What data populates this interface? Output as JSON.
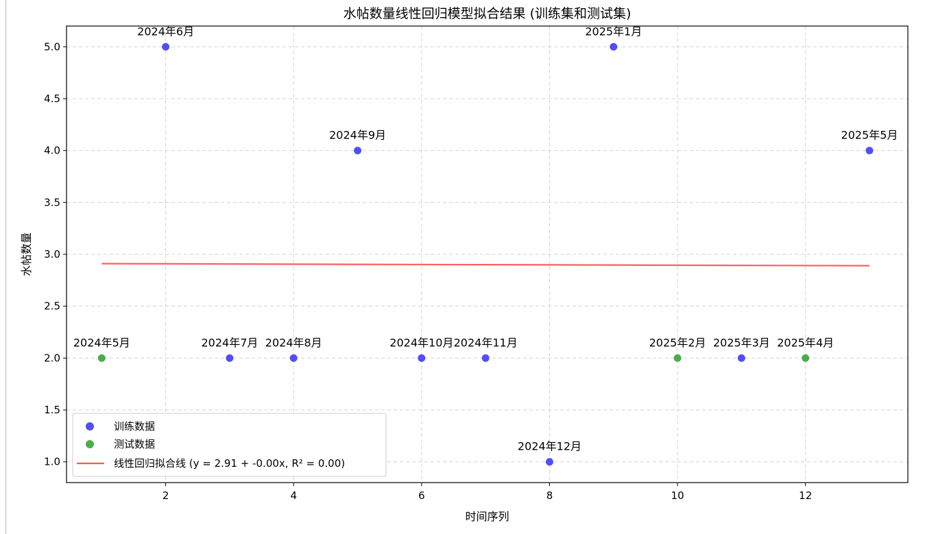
{
  "chart_data": {
    "type": "scatter",
    "title": "水帖数量线性回归模型拟合结果 (训练集和测试集)",
    "xlabel": "时间序列",
    "ylabel": "水帖数量",
    "xlim": [
      0.45,
      13.6
    ],
    "ylim": [
      0.8,
      5.2
    ],
    "xticks": [
      2,
      4,
      6,
      8,
      10,
      12
    ],
    "yticks": [
      1.0,
      1.5,
      2.0,
      2.5,
      3.0,
      3.5,
      4.0,
      4.5,
      5.0
    ],
    "xtick_labels": [
      "2",
      "4",
      "6",
      "8",
      "10",
      "12"
    ],
    "ytick_labels": [
      "1.0",
      "1.5",
      "2.0",
      "2.5",
      "3.0",
      "3.5",
      "4.0",
      "4.5",
      "5.0"
    ],
    "grid": true,
    "legend_position": "lower-left",
    "series": [
      {
        "name": "训练数据",
        "color": "#3333ee",
        "x": [
          2,
          3,
          4,
          5,
          6,
          7,
          8,
          9,
          11,
          13
        ],
        "y": [
          5,
          2,
          2,
          4,
          2,
          2,
          1,
          5,
          2,
          4
        ]
      },
      {
        "name": "测试数据",
        "color": "#2ca02c",
        "x": [
          1,
          10,
          12
        ],
        "y": [
          2,
          2,
          2
        ]
      }
    ],
    "fit_line": {
      "name": "线性回归拟合线 (y = 2.91 + -0.00x, R² = 0.00)",
      "color": "#ff5555",
      "x": [
        1,
        13
      ],
      "y": [
        2.91,
        2.89
      ]
    },
    "annotations": [
      {
        "text": "2024年5月",
        "x": 1,
        "y": 2
      },
      {
        "text": "2024年6月",
        "x": 2,
        "y": 5
      },
      {
        "text": "2024年7月",
        "x": 3,
        "y": 2
      },
      {
        "text": "2024年8月",
        "x": 4,
        "y": 2
      },
      {
        "text": "2024年9月",
        "x": 5,
        "y": 4
      },
      {
        "text": "2024年10月",
        "x": 6,
        "y": 2
      },
      {
        "text": "2024年11月",
        "x": 7,
        "y": 2
      },
      {
        "text": "2024年12月",
        "x": 8,
        "y": 1
      },
      {
        "text": "2025年1月",
        "x": 9,
        "y": 5
      },
      {
        "text": "2025年2月",
        "x": 10,
        "y": 2
      },
      {
        "text": "2025年3月",
        "x": 11,
        "y": 2
      },
      {
        "text": "2025年4月",
        "x": 12,
        "y": 2
      },
      {
        "text": "2025年5月",
        "x": 13,
        "y": 4
      }
    ]
  }
}
